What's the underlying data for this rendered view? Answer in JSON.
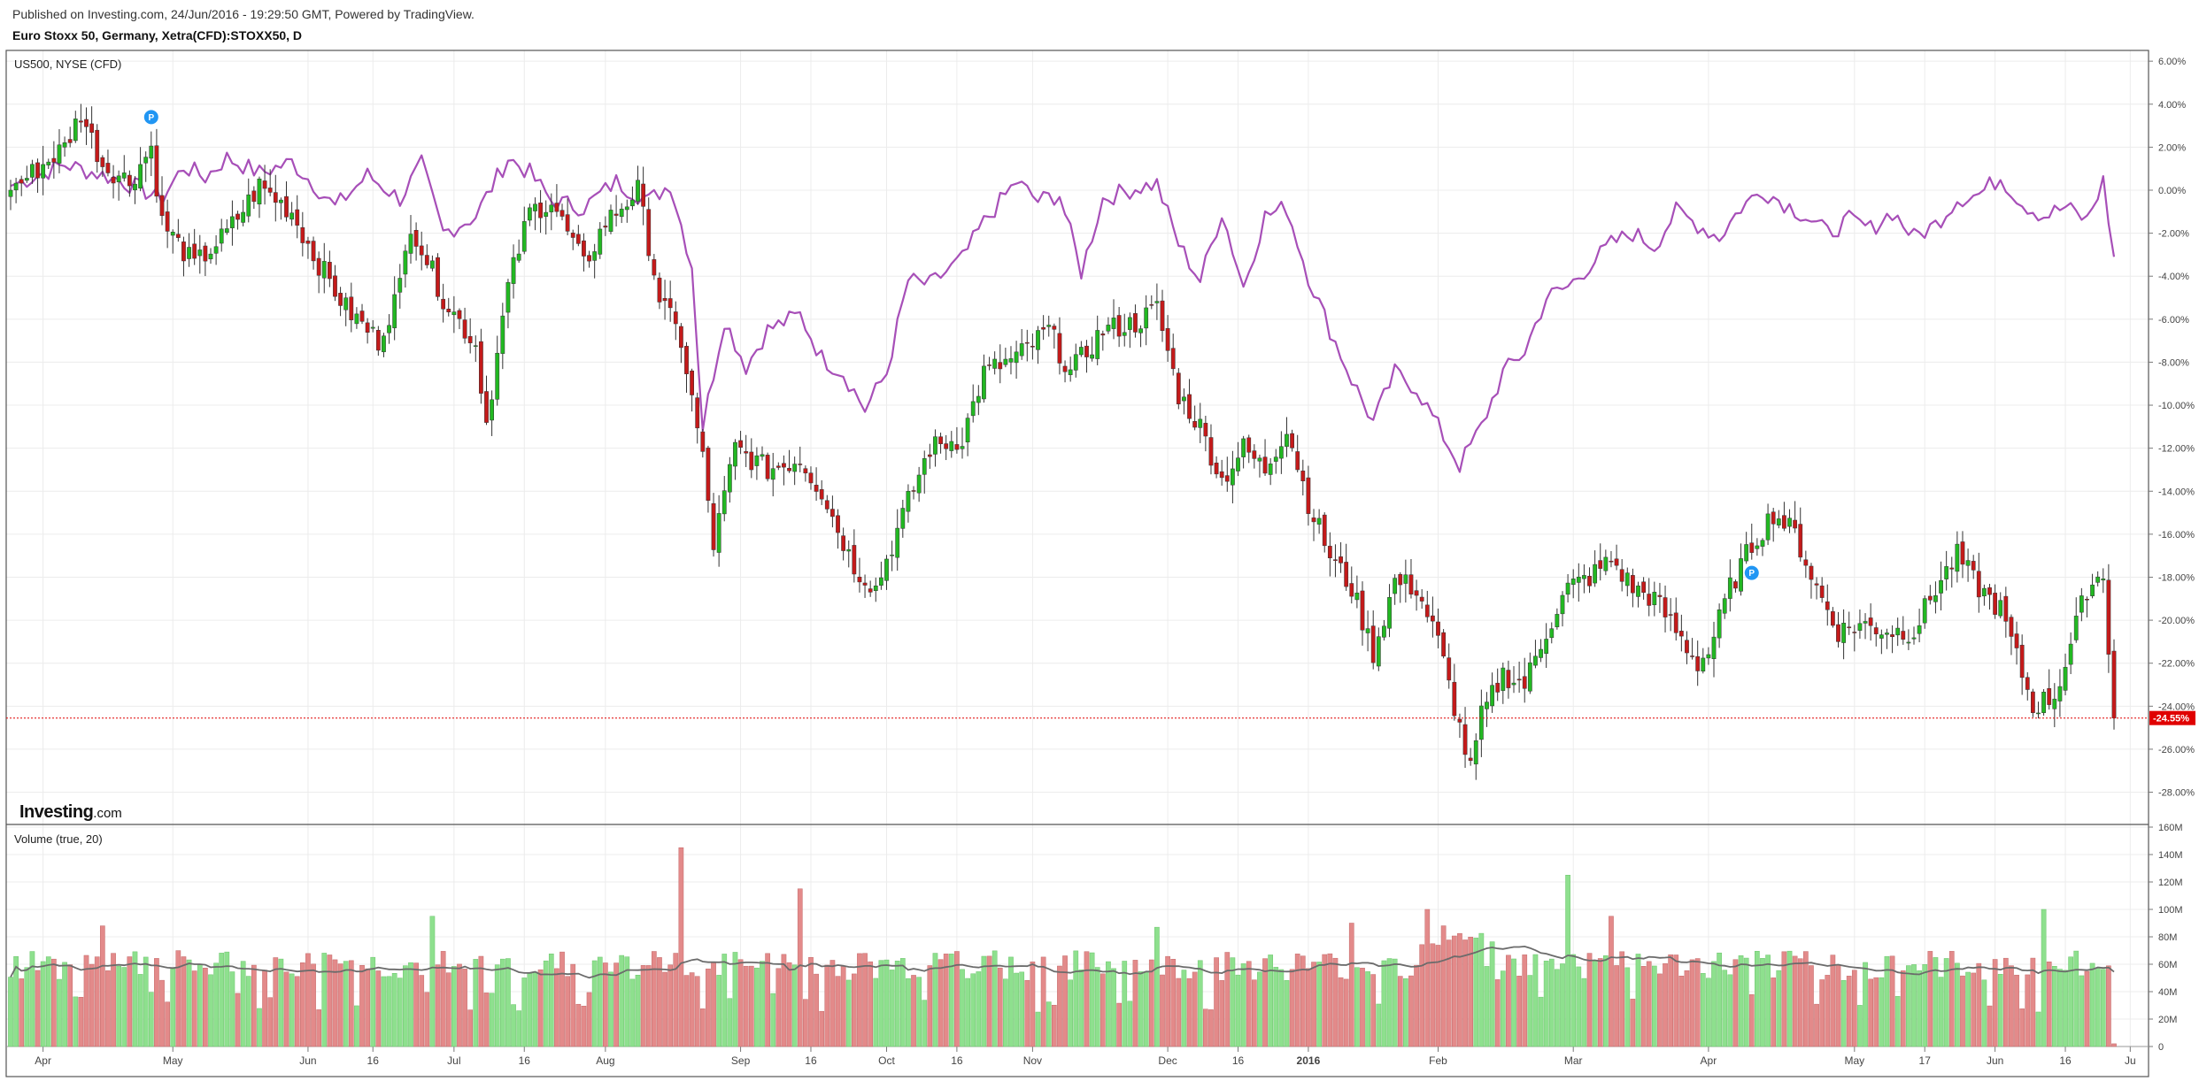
{
  "header": {
    "published": "Published on Investing.com, 24/Jun/2016 - 19:29:50 GMT, Powered by TradingView.",
    "symbol": "Euro Stoxx 50, Germany, Xetra(CFD):STOXX50, D"
  },
  "colors": {
    "up": "#22b822",
    "down": "#c41a1a",
    "compare_line": "#a74fb8",
    "volume_up": "#8ee08e",
    "volume_down": "#e38a8a",
    "volume_ma": "#6b6b6b",
    "grid": "#ececec",
    "last_price": "#e00000",
    "marker": "#2196f3"
  },
  "logo": {
    "brand": "Investing",
    "suffix": ".com"
  },
  "chart_data": [
    {
      "type": "candlestick",
      "title": "US500, NYSE (CFD)",
      "y_unit": "%",
      "ylim": [
        -29.5,
        6.5
      ],
      "y_ticks": [
        "6.00%",
        "4.00%",
        "2.00%",
        "0.00%",
        "-2.00%",
        "-4.00%",
        "-6.00%",
        "-8.00%",
        "-10.00%",
        "-12.00%",
        "-14.00%",
        "-16.00%",
        "-18.00%",
        "-20.00%",
        "-22.00%",
        "-24.00%",
        "-26.00%",
        "-28.00%"
      ],
      "y_tick_values": [
        6,
        4,
        2,
        0,
        -2,
        -4,
        -6,
        -8,
        -10,
        -12,
        -14,
        -16,
        -18,
        -20,
        -22,
        -24,
        -26,
        -28
      ],
      "last_value": -24.55,
      "last_label": "-24.55%",
      "markers": [
        "P",
        "P"
      ],
      "marker_positions": [
        [
          26,
          3.4
        ],
        [
          322,
          -17.8
        ]
      ],
      "x_labels": [
        "Apr",
        "May",
        "Jun",
        "16",
        "Jul",
        "16",
        "Aug",
        "Sep",
        "16",
        "Oct",
        "16",
        "Nov",
        "Dec",
        "16",
        "2016",
        "Feb",
        "Mar",
        "Apr",
        "May",
        "17",
        "Jun",
        "16",
        "Ju"
      ],
      "x_label_index": [
        6,
        30,
        55,
        67,
        82,
        95,
        110,
        135,
        148,
        162,
        175,
        189,
        214,
        227,
        240,
        264,
        289,
        314,
        341,
        354,
        367,
        380,
        392
      ],
      "x_bold_index": 14,
      "compare_series": {
        "name": "US500",
        "points": [
          [
            0,
            0.2
          ],
          [
            10,
            1.2
          ],
          [
            20,
            0.5
          ],
          [
            28,
            -0.4
          ],
          [
            32,
            1.1
          ],
          [
            36,
            0.6
          ],
          [
            40,
            1.5
          ],
          [
            46,
            0.8
          ],
          [
            52,
            1.3
          ],
          [
            56,
            0.3
          ],
          [
            60,
            -0.8
          ],
          [
            66,
            0.7
          ],
          [
            72,
            -0.4
          ],
          [
            76,
            1.2
          ],
          [
            80,
            -2.0
          ],
          [
            86,
            -1.2
          ],
          [
            92,
            1.5
          ],
          [
            96,
            0.8
          ],
          [
            100,
            -0.5
          ],
          [
            106,
            -0.8
          ],
          [
            112,
            0.4
          ],
          [
            118,
            -0.5
          ],
          [
            122,
            0.3
          ],
          [
            126,
            -3.5
          ],
          [
            128,
            -11.0
          ],
          [
            132,
            -6.0
          ],
          [
            136,
            -8.2
          ],
          [
            140,
            -6.5
          ],
          [
            146,
            -5.8
          ],
          [
            150,
            -7.8
          ],
          [
            154,
            -8.5
          ],
          [
            158,
            -10.2
          ],
          [
            162,
            -8.5
          ],
          [
            166,
            -4.2
          ],
          [
            170,
            -4.4
          ],
          [
            176,
            -3.2
          ],
          [
            180,
            -1.5
          ],
          [
            186,
            0.4
          ],
          [
            190,
            -0.5
          ],
          [
            194,
            -0.2
          ],
          [
            198,
            -3.8
          ],
          [
            202,
            -0.4
          ],
          [
            208,
            0.1
          ],
          [
            212,
            0.3
          ],
          [
            216,
            -2.5
          ],
          [
            220,
            -4.2
          ],
          [
            224,
            -1.0
          ],
          [
            228,
            -4.5
          ],
          [
            232,
            -1.2
          ],
          [
            236,
            -0.8
          ],
          [
            240,
            -4.0
          ],
          [
            244,
            -6.5
          ],
          [
            248,
            -8.8
          ],
          [
            252,
            -10.8
          ],
          [
            256,
            -8.5
          ],
          [
            260,
            -9.2
          ],
          [
            264,
            -11.0
          ],
          [
            268,
            -12.8
          ],
          [
            272,
            -11.0
          ],
          [
            276,
            -8.5
          ],
          [
            280,
            -7.5
          ],
          [
            284,
            -5.0
          ],
          [
            288,
            -4.5
          ],
          [
            292,
            -3.5
          ],
          [
            296,
            -2.5
          ],
          [
            300,
            -2.0
          ],
          [
            304,
            -2.6
          ],
          [
            308,
            -1.0
          ],
          [
            312,
            -1.6
          ],
          [
            316,
            -2.2
          ],
          [
            320,
            -0.8
          ],
          [
            324,
            0.0
          ],
          [
            328,
            -0.6
          ],
          [
            332,
            -1.2
          ],
          [
            336,
            -2.0
          ],
          [
            340,
            -1.4
          ],
          [
            344,
            -1.8
          ],
          [
            348,
            -1.0
          ],
          [
            352,
            -2.2
          ],
          [
            356,
            -1.6
          ],
          [
            360,
            -0.4
          ],
          [
            364,
            -0.2
          ],
          [
            368,
            0.6
          ],
          [
            372,
            -0.6
          ],
          [
            376,
            -1.2
          ],
          [
            380,
            -0.8
          ],
          [
            384,
            -1.4
          ],
          [
            387,
            0.4
          ],
          [
            389,
            -3.1
          ]
        ]
      },
      "main_series": {
        "name": "STOXX50",
        "anchors": [
          [
            0,
            0
          ],
          [
            10,
            2.0
          ],
          [
            13,
            3.6
          ],
          [
            17,
            1.2
          ],
          [
            22,
            0.4
          ],
          [
            26,
            2.0
          ],
          [
            28,
            -1.5
          ],
          [
            34,
            -3.5
          ],
          [
            40,
            -2.0
          ],
          [
            46,
            0.2
          ],
          [
            52,
            -1.0
          ],
          [
            56,
            -3.0
          ],
          [
            62,
            -5.5
          ],
          [
            68,
            -7.0
          ],
          [
            72,
            -4.5
          ],
          [
            74,
            -1.5
          ],
          [
            80,
            -5.0
          ],
          [
            86,
            -7.2
          ],
          [
            88,
            -10.8
          ],
          [
            92,
            -4.5
          ],
          [
            96,
            -1.0
          ],
          [
            100,
            -0.5
          ],
          [
            106,
            -3.5
          ],
          [
            110,
            -1.5
          ],
          [
            116,
            0.0
          ],
          [
            120,
            -5.0
          ],
          [
            124,
            -7.0
          ],
          [
            128,
            -12.5
          ],
          [
            130,
            -16.5
          ],
          [
            134,
            -12.0
          ],
          [
            140,
            -13.0
          ],
          [
            146,
            -12.5
          ],
          [
            150,
            -14.0
          ],
          [
            156,
            -17.5
          ],
          [
            160,
            -18.5
          ],
          [
            166,
            -14.5
          ],
          [
            170,
            -12.0
          ],
          [
            176,
            -11.5
          ],
          [
            180,
            -8.5
          ],
          [
            186,
            -7.8
          ],
          [
            192,
            -6.5
          ],
          [
            196,
            -8.5
          ],
          [
            202,
            -6.5
          ],
          [
            208,
            -6.2
          ],
          [
            212,
            -5.5
          ],
          [
            216,
            -9.5
          ],
          [
            220,
            -11.0
          ],
          [
            224,
            -13.5
          ],
          [
            228,
            -12.0
          ],
          [
            232,
            -13.0
          ],
          [
            236,
            -11.0
          ],
          [
            240,
            -14.5
          ],
          [
            244,
            -17.0
          ],
          [
            248,
            -18.5
          ],
          [
            252,
            -21.5
          ],
          [
            256,
            -18.2
          ],
          [
            260,
            -18.5
          ],
          [
            264,
            -21.0
          ],
          [
            268,
            -25.0
          ],
          [
            270,
            -27.0
          ],
          [
            272,
            -24.5
          ],
          [
            276,
            -22.5
          ],
          [
            280,
            -23.0
          ],
          [
            284,
            -20.5
          ],
          [
            288,
            -18.5
          ],
          [
            292,
            -18.0
          ],
          [
            296,
            -17.2
          ],
          [
            300,
            -18.5
          ],
          [
            304,
            -19.0
          ],
          [
            308,
            -20.5
          ],
          [
            312,
            -22.0
          ],
          [
            314,
            -21.5
          ],
          [
            318,
            -18.5
          ],
          [
            322,
            -16.5
          ],
          [
            326,
            -15.0
          ],
          [
            330,
            -16.0
          ],
          [
            334,
            -18.5
          ],
          [
            338,
            -20.5
          ],
          [
            342,
            -20.2
          ],
          [
            348,
            -20.5
          ],
          [
            352,
            -20.5
          ],
          [
            356,
            -18.5
          ],
          [
            360,
            -17.0
          ],
          [
            364,
            -18.5
          ],
          [
            368,
            -19.5
          ],
          [
            372,
            -22.5
          ],
          [
            374,
            -24.0
          ],
          [
            378,
            -23.5
          ],
          [
            380,
            -22.0
          ],
          [
            384,
            -18.5
          ],
          [
            387,
            -17.8
          ],
          [
            389,
            -24.6
          ]
        ]
      }
    },
    {
      "type": "bar",
      "title": "Volume (true, 20)",
      "y_unit": "M",
      "ylim": [
        0,
        160
      ],
      "y_ticks": [
        "160M",
        "140M",
        "120M",
        "100M",
        "80M",
        "60M",
        "40M",
        "20M",
        "0"
      ],
      "y_tick_values": [
        160,
        140,
        120,
        100,
        80,
        60,
        40,
        20,
        0
      ],
      "moving_average_period": 20,
      "spikes": [
        [
          17,
          88
        ],
        [
          78,
          95
        ],
        [
          124,
          145
        ],
        [
          146,
          115
        ],
        [
          212,
          87
        ],
        [
          248,
          90
        ],
        [
          262,
          100
        ],
        [
          288,
          125
        ],
        [
          296,
          95
        ],
        [
          376,
          100
        ]
      ]
    }
  ]
}
